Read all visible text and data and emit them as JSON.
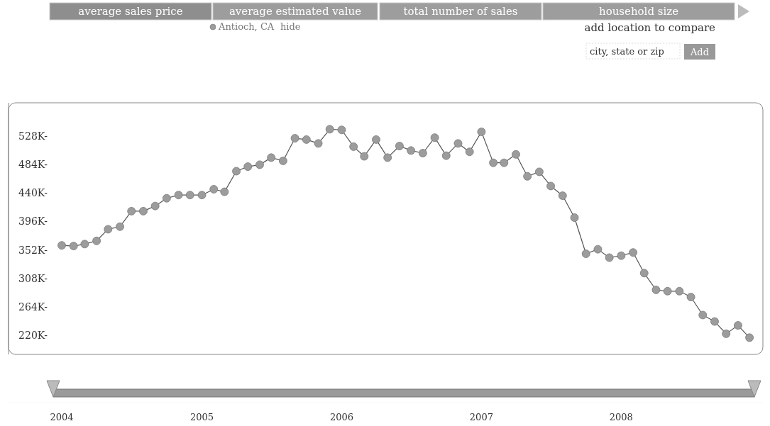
{
  "chart_data": {
    "type": "line",
    "title": "average sales price",
    "annotations": [
      "average estimated value",
      "total number of sales",
      "household size",
      "hide",
      "add location to compare",
      "city, state or zip",
      "Add"
    ],
    "x": [
      "2004-01",
      "2004-02",
      "2004-03",
      "2004-04",
      "2004-05",
      "2004-06",
      "2004-07",
      "2004-08",
      "2004-09",
      "2004-10",
      "2004-11",
      "2004-12",
      "2005-01",
      "2005-02",
      "2005-03",
      "2005-04",
      "2005-05",
      "2005-06",
      "2005-07",
      "2005-08",
      "2005-09",
      "2005-10",
      "2005-11",
      "2005-12",
      "2006-01",
      "2006-02",
      "2006-03",
      "2006-04",
      "2006-05",
      "2006-06",
      "2006-07",
      "2006-08",
      "2006-09",
      "2006-10",
      "2006-11",
      "2006-12",
      "2007-01",
      "2007-02",
      "2007-03",
      "2007-04",
      "2007-05",
      "2007-06",
      "2007-07",
      "2007-08",
      "2007-09",
      "2007-10",
      "2007-11",
      "2007-12",
      "2008-01",
      "2008-02",
      "2008-03",
      "2008-04",
      "2008-05",
      "2008-06",
      "2008-07",
      "2008-08",
      "2008-09",
      "2008-10",
      "2008-11",
      "2008-12"
    ],
    "series": [
      {
        "name": "Antioch, CA",
        "color": "#9c9c9c",
        "values": [
          359000,
          358000,
          361000,
          366000,
          384000,
          388000,
          412000,
          412000,
          420000,
          432000,
          437000,
          437000,
          437000,
          446000,
          442000,
          474000,
          481000,
          484000,
          495000,
          490000,
          525000,
          523000,
          517000,
          539000,
          538000,
          512000,
          497000,
          523000,
          495000,
          513000,
          506000,
          502000,
          526000,
          498000,
          517000,
          504000,
          535000,
          487000,
          487000,
          500000,
          466000,
          473000,
          451000,
          436000,
          402000,
          346000,
          353000,
          340000,
          343000,
          348000,
          316000,
          290000,
          288000,
          288000,
          279000,
          251000,
          241000,
          222000,
          235000,
          216000
        ]
      }
    ],
    "xlim": [
      "2003-08-15",
      "2009-01-05"
    ],
    "xticks": [
      {
        "value": "2004-01",
        "label": "2004"
      },
      {
        "value": "2005-01",
        "label": "2005"
      },
      {
        "value": "2006-01",
        "label": "2006"
      },
      {
        "value": "2007-01",
        "label": "2007"
      },
      {
        "value": "2008-01",
        "label": "2008"
      }
    ],
    "ylim": [
      190000,
      580000
    ],
    "yticks": [
      {
        "value": 220000,
        "label": "220K-"
      },
      {
        "value": 264000,
        "label": "264K-"
      },
      {
        "value": 308000,
        "label": "308K-"
      },
      {
        "value": 352000,
        "label": "352K-"
      },
      {
        "value": 396000,
        "label": "396K-"
      },
      {
        "value": 440000,
        "label": "440K-"
      },
      {
        "value": 484000,
        "label": "484K-"
      },
      {
        "value": 528000,
        "label": "528K-"
      }
    ],
    "grid": false,
    "legend": "top",
    "marker": "circle",
    "line_style": "solid"
  }
}
